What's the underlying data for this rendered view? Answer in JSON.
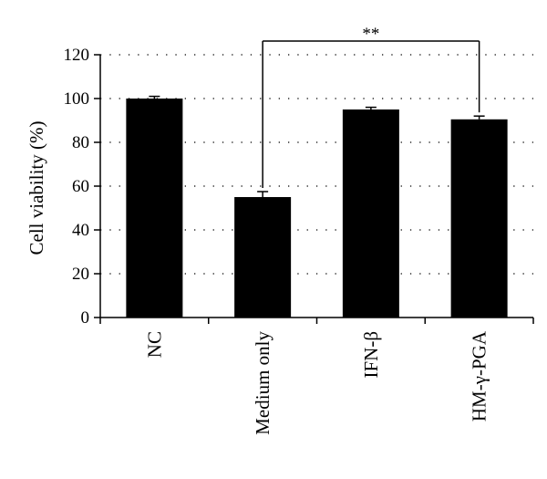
{
  "chart_data": {
    "type": "bar",
    "title": "",
    "xlabel": "",
    "ylabel": "Cell viability (%)",
    "ylim": [
      0,
      120
    ],
    "yticks": [
      0,
      20,
      40,
      60,
      80,
      100,
      120
    ],
    "grid": "horizontal dotted",
    "categories": [
      "NC",
      "Medium only",
      "IFN-β",
      "HM-γ-PGA"
    ],
    "values": [
      100,
      55,
      95,
      90.5
    ],
    "error": [
      1,
      2.5,
      1,
      1.5
    ],
    "bar_color": "#000000",
    "significance": {
      "from": "Medium only",
      "to": "HM-γ-PGA",
      "label": "**"
    }
  }
}
